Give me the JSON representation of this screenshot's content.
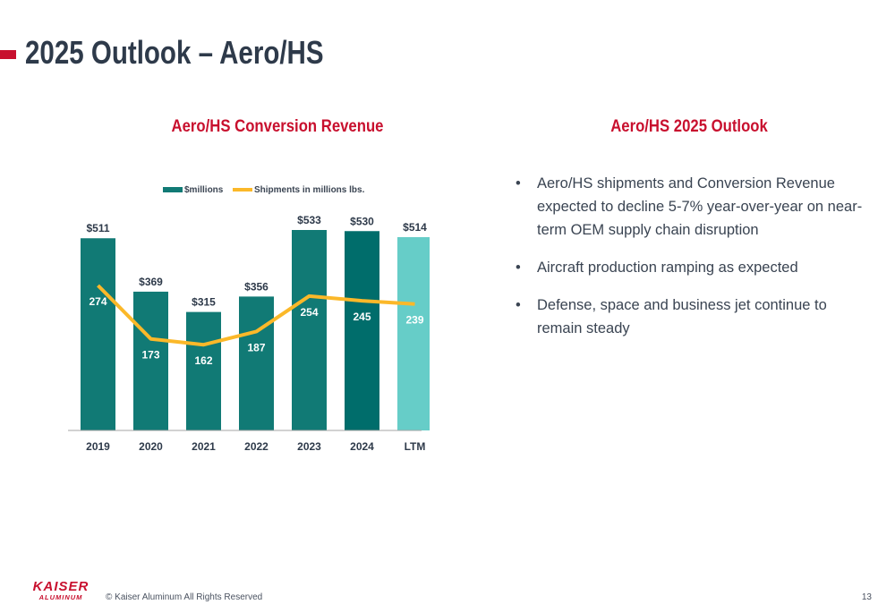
{
  "page": {
    "title": "2025 Outlook – Aero/HS",
    "accent_color": "#c8102e"
  },
  "chart_section": {
    "title": "Aero/HS Conversion Revenue"
  },
  "outlook_section": {
    "title": "Aero/HS 2025 Outlook",
    "bullets": [
      "Aero/HS shipments and Conversion Revenue expected to decline 5-7% year-over-year on near-term OEM supply chain disruption",
      "Aircraft production ramping as expected",
      "Defense, space and business jet continue to remain steady"
    ]
  },
  "chart_data": {
    "type": "bar",
    "categories": [
      "2019",
      "2020",
      "2021",
      "2022",
      "2023",
      "2024",
      "LTM"
    ],
    "series": [
      {
        "name": "$millions",
        "type": "bar",
        "values": [
          511,
          369,
          315,
          356,
          533,
          530,
          514
        ],
        "labels": [
          "$511",
          "$369",
          "$315",
          "$356",
          "$533",
          "$530",
          "$514"
        ],
        "color": "#117a75",
        "bar_colors": [
          "#117a75",
          "#117a75",
          "#117a75",
          "#117a75",
          "#117a75",
          "#006d6b",
          "#66cdc8"
        ]
      },
      {
        "name": "Shipments in millions lbs.",
        "type": "line",
        "values": [
          274,
          173,
          162,
          187,
          254,
          245,
          239
        ],
        "color": "#fbb829"
      }
    ],
    "legend_position": "top",
    "grid": false,
    "ylim": [
      0,
      560
    ]
  },
  "footer": {
    "logo_top": "KAISER",
    "logo_bottom": "ALUMINUM",
    "copyright": "© Kaiser Aluminum All Rights Reserved",
    "page_number": "13"
  }
}
